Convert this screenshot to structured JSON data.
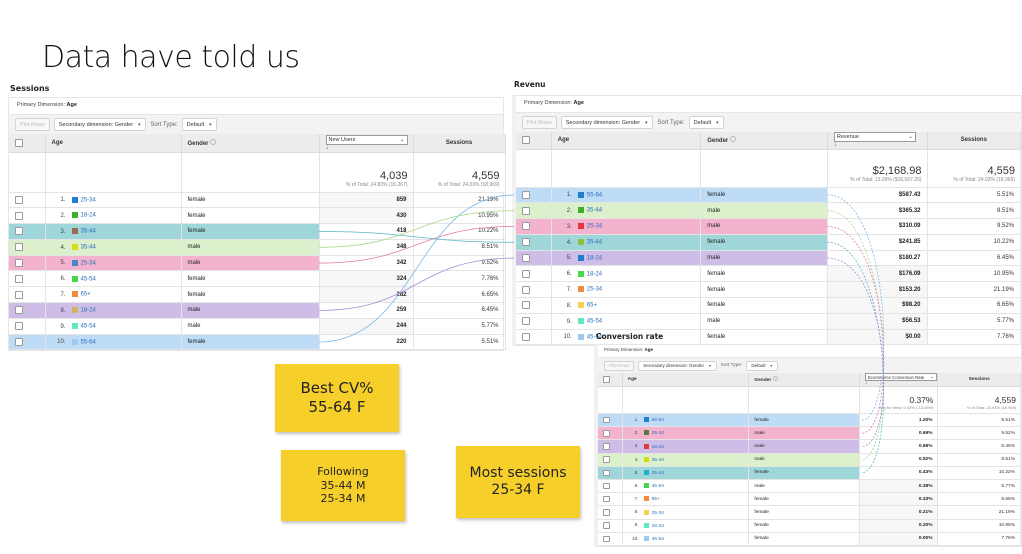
{
  "slide_title": "Data have told us",
  "common": {
    "primary_dimension_label": "Primary Dimension:",
    "primary_dimension_value": "Age",
    "plot_rows": "Plot Rows",
    "secondary_dimension": "Secondary dimension: Gender",
    "sort_type_label": "Sort Type:",
    "sort_type_value": "Default",
    "col_age": "Age",
    "col_gender": "Gender",
    "col_sessions": "Sessions",
    "sessions_total": "4,559",
    "sessions_total_sub": "% of Total: 24.03% (18,969)"
  },
  "sessions_panel": {
    "title": "Sessions",
    "metric_select": "New Users",
    "metric_total": "4,039",
    "metric_total_sub": "% of Total: 24.83% (16,267)",
    "rows": [
      {
        "rank": "1.",
        "age": "25-34",
        "gender": "female",
        "metric": "859",
        "sessions": "21.19%",
        "swatch": "#1f7fd0",
        "highlight": ""
      },
      {
        "rank": "2.",
        "age": "18-24",
        "gender": "female",
        "metric": "430",
        "sessions": "10.95%",
        "swatch": "#3cae2c",
        "highlight": ""
      },
      {
        "rank": "3.",
        "age": "35-44",
        "gender": "female",
        "metric": "418",
        "sessions": "10.22%",
        "swatch": "#9a6a52",
        "highlight": "teal"
      },
      {
        "rank": "4.",
        "age": "35-44",
        "gender": "male",
        "metric": "348",
        "sessions": "8.51%",
        "swatch": "#d6dc14",
        "highlight": "green"
      },
      {
        "rank": "5.",
        "age": "25-34",
        "gender": "male",
        "metric": "342",
        "sessions": "9.52%",
        "swatch": "#4a86c6",
        "highlight": "pink"
      },
      {
        "rank": "6.",
        "age": "45-54",
        "gender": "female",
        "metric": "324",
        "sessions": "7.76%",
        "swatch": "#46d84a",
        "highlight": ""
      },
      {
        "rank": "7.",
        "age": "65+",
        "gender": "female",
        "metric": "282",
        "sessions": "6.65%",
        "swatch": "#f58a3c",
        "highlight": ""
      },
      {
        "rank": "8.",
        "age": "18-24",
        "gender": "male",
        "metric": "259",
        "sessions": "6.45%",
        "swatch": "#d5b45e",
        "highlight": "purple"
      },
      {
        "rank": "9.",
        "age": "45-54",
        "gender": "male",
        "metric": "244",
        "sessions": "5.77%",
        "swatch": "#5ee8c0",
        "highlight": ""
      },
      {
        "rank": "10.",
        "age": "55-64",
        "gender": "female",
        "metric": "220",
        "sessions": "5.51%",
        "swatch": "#9cc8f2",
        "highlight": "blue"
      }
    ]
  },
  "revenue_panel": {
    "title": "Revenu",
    "metric_select": "Revenue",
    "metric_total": "$2,168.98",
    "metric_total_sub": "% of Total: 13.09% ($16,567.26)",
    "rows": [
      {
        "rank": "1.",
        "age": "55-64",
        "gender": "female",
        "metric": "$587.43",
        "sessions": "5.51%",
        "swatch": "#1f7fd0",
        "highlight": "blue"
      },
      {
        "rank": "2.",
        "age": "35-44",
        "gender": "male",
        "metric": "$365.32",
        "sessions": "8.51%",
        "swatch": "#3cae2c",
        "highlight": "green"
      },
      {
        "rank": "3.",
        "age": "25-34",
        "gender": "male",
        "metric": "$310.09",
        "sessions": "9.52%",
        "swatch": "#e2383c",
        "highlight": "pink"
      },
      {
        "rank": "4.",
        "age": "35-44",
        "gender": "female",
        "metric": "$241.85",
        "sessions": "10.22%",
        "swatch": "#8ec23c",
        "highlight": "teal"
      },
      {
        "rank": "5.",
        "age": "18-24",
        "gender": "male",
        "metric": "$180.27",
        "sessions": "6.45%",
        "swatch": "#1f7fd0",
        "highlight": "purple"
      },
      {
        "rank": "6.",
        "age": "18-24",
        "gender": "female",
        "metric": "$176.09",
        "sessions": "10.95%",
        "swatch": "#46d84a",
        "highlight": ""
      },
      {
        "rank": "7.",
        "age": "25-34",
        "gender": "female",
        "metric": "$153.20",
        "sessions": "21.19%",
        "swatch": "#f58a3c",
        "highlight": ""
      },
      {
        "rank": "8.",
        "age": "65+",
        "gender": "female",
        "metric": "$98.20",
        "sessions": "6.65%",
        "swatch": "#f6d24a",
        "highlight": ""
      },
      {
        "rank": "9.",
        "age": "45-54",
        "gender": "male",
        "metric": "$56.53",
        "sessions": "5.77%",
        "swatch": "#5ee8c0",
        "highlight": ""
      },
      {
        "rank": "10.",
        "age": "45-54",
        "gender": "female",
        "metric": "$0.00",
        "sessions": "7.76%",
        "swatch": "#9cc8f2",
        "highlight": ""
      }
    ]
  },
  "conversion_panel": {
    "title": "Conversion rate",
    "metric_select": "Ecommerce Conversion Rate",
    "metric_total": "0.37%",
    "metric_total_sub": "Avg for View: 0.43% (-13.48%)",
    "rows": [
      {
        "rank": "1.",
        "age": "55-64",
        "gender": "female",
        "metric": "1.20%",
        "sessions": "5.51%",
        "swatch": "#1f7fd0",
        "highlight": "blue"
      },
      {
        "rank": "2.",
        "age": "25-34",
        "gender": "male",
        "metric": "0.69%",
        "sessions": "9.52%",
        "swatch": "#5a7a3a",
        "highlight": "pink"
      },
      {
        "rank": "3.",
        "age": "18-24",
        "gender": "male",
        "metric": "0.68%",
        "sessions": "6.45%",
        "swatch": "#e2383c",
        "highlight": "purple"
      },
      {
        "rank": "4.",
        "age": "35-44",
        "gender": "male",
        "metric": "0.52%",
        "sessions": "8.51%",
        "swatch": "#d6dc14",
        "highlight": "green"
      },
      {
        "rank": "5.",
        "age": "35-44",
        "gender": "female",
        "metric": "0.43%",
        "sessions": "10.22%",
        "swatch": "#1fb0c8",
        "highlight": "teal"
      },
      {
        "rank": "6.",
        "age": "45-54",
        "gender": "male",
        "metric": "0.38%",
        "sessions": "5.77%",
        "swatch": "#46d84a",
        "highlight": ""
      },
      {
        "rank": "7.",
        "age": "65+",
        "gender": "female",
        "metric": "0.33%",
        "sessions": "6.65%",
        "swatch": "#f58a3c",
        "highlight": ""
      },
      {
        "rank": "8.",
        "age": "25-34",
        "gender": "female",
        "metric": "0.21%",
        "sessions": "21.19%",
        "swatch": "#f6d24a",
        "highlight": ""
      },
      {
        "rank": "9.",
        "age": "18-24",
        "gender": "female",
        "metric": "0.20%",
        "sessions": "10.95%",
        "swatch": "#5ee8c0",
        "highlight": ""
      },
      {
        "rank": "10.",
        "age": "45-54",
        "gender": "female",
        "metric": "0.00%",
        "sessions": "7.76%",
        "swatch": "#9cc8f2",
        "highlight": ""
      }
    ]
  },
  "notes": {
    "best_cv": "Best CV%\n55-64 F",
    "following": "Following\n35-44 M\n25-34 M",
    "most_sessions": "Most sessions\n25-34 F"
  },
  "connector_colors": {
    "blue": "#7ab8ea",
    "green": "#a8d88a",
    "pink": "#e87aa6",
    "teal": "#5ab8c0",
    "purple": "#a88ad6"
  }
}
